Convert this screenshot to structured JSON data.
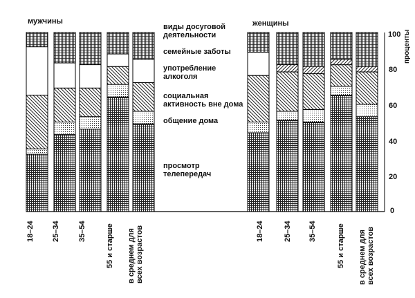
{
  "chart_data": {
    "type": "bar",
    "stacked": true,
    "ylim": [
      0,
      100
    ],
    "yticks": [
      0,
      20,
      40,
      60,
      80,
      100
    ],
    "ylabel": "проценты",
    "legend_title": "виды досуговой деятельности",
    "segments": [
      {
        "key": "tv",
        "label": "просмотр телепередач"
      },
      {
        "key": "home",
        "label": "общение дома"
      },
      {
        "key": "social",
        "label": "социальная активность вне дома"
      },
      {
        "key": "alcohol",
        "label": "употребление алкоголя"
      },
      {
        "key": "family",
        "label": "семейные заботы"
      }
    ],
    "groups": [
      {
        "name": "мужчины",
        "categories": [
          "18–24",
          "25–34",
          "35–54",
          "55 и старше",
          "в среднем для всех возрастов"
        ],
        "series": {
          "tv": [
            32,
            43,
            46,
            64,
            49
          ],
          "home": [
            3,
            7,
            7,
            7,
            7
          ],
          "social": [
            30,
            19,
            16,
            10,
            16
          ],
          "alcohol": [
            0,
            0,
            0,
            0,
            0
          ],
          "family": [
            27,
            14,
            13,
            7,
            13
          ]
        }
      },
      {
        "name": "женщины",
        "categories": [
          "18–24",
          "25–34",
          "35–54",
          "55 и старше",
          "в среднем для всех возрастов"
        ],
        "series": {
          "tv": [
            44,
            51,
            50,
            65,
            53
          ],
          "home": [
            6,
            5,
            7,
            5,
            7
          ],
          "social": [
            26,
            22,
            20,
            12,
            18
          ],
          "alcohol": [
            0,
            4,
            4,
            3,
            3
          ],
          "family": [
            13,
            0,
            0,
            0,
            0
          ]
        }
      }
    ]
  }
}
